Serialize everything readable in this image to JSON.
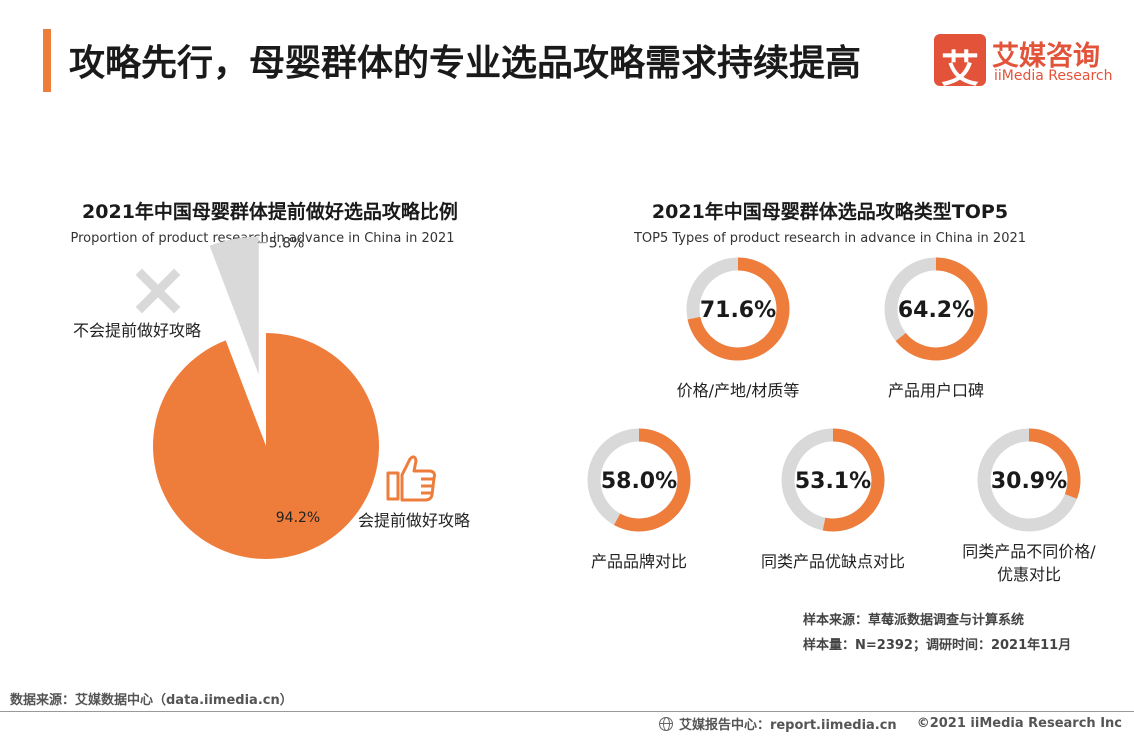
{
  "header": {
    "title": "攻略先行，母婴群体的专业选品攻略需求持续提高",
    "logo_mark": "艾",
    "logo_cn": "艾媒咨询",
    "logo_en": "iiMedia Research"
  },
  "colors": {
    "accent": "#ee7d3c",
    "track": "#d9d9d9",
    "logo": "#e2533a"
  },
  "chart_data": [
    {
      "type": "pie",
      "title": "2021年中国母婴群体提前做好选品攻略比例",
      "subtitle": "Proportion of product research in advance in China in 2021",
      "slices": [
        {
          "label": "会提前做好攻略",
          "value": 94.2,
          "value_label": "94.2%",
          "color": "#ee7d3c",
          "icon": "thumbs-up-icon"
        },
        {
          "label": "不会提前做好攻略",
          "value": 5.8,
          "value_label": "5.8%",
          "color": "#d9d9d9",
          "icon": "cross-icon",
          "exploded": true
        }
      ]
    },
    {
      "type": "donut",
      "title": "2021年中国母婴群体选品攻略类型TOP5",
      "subtitle": "TOP5 Types of product research in advance in China in 2021",
      "items": [
        {
          "label_lines": [
            "价格/产地/材质等"
          ],
          "value": 71.6,
          "value_label": "71.6%"
        },
        {
          "label_lines": [
            "产品用户口碑"
          ],
          "value": 64.2,
          "value_label": "64.2%"
        },
        {
          "label_lines": [
            "产品品牌对比"
          ],
          "value": 58.0,
          "value_label": "58.0%"
        },
        {
          "label_lines": [
            "同类产品优缺点对比"
          ],
          "value": 53.1,
          "value_label": "53.1%"
        },
        {
          "label_lines": [
            "同类产品不同价格/",
            "优惠对比"
          ],
          "value": 30.9,
          "value_label": "30.9%"
        }
      ]
    }
  ],
  "notes": {
    "sample_source": "样本来源：草莓派数据调查与计算系统",
    "sample_size": "样本量：N=2392；调研时间：2021年11月"
  },
  "footer": {
    "data_source": "数据来源：艾媒数据中心（data.iimedia.cn）",
    "report_center": "艾媒报告中心：report.iimedia.cn",
    "copyright": "©2021  iiMedia Research  Inc"
  }
}
